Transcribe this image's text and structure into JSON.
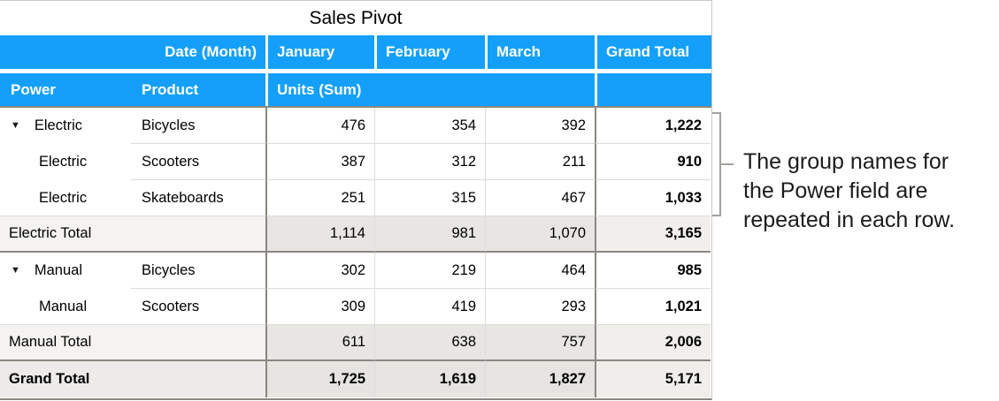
{
  "title": "Sales Pivot",
  "colors": {
    "header_blue": "#14a0fa"
  },
  "icons": {
    "disclosure_triangle": "▼"
  },
  "header": {
    "date_label": "Date (Month)",
    "months": [
      "January",
      "February",
      "March"
    ],
    "grand_total": "Grand Total",
    "power": "Power",
    "product": "Product",
    "units": "Units (Sum)"
  },
  "rows": [
    {
      "power": "Electric",
      "product": "Bicycles",
      "jan": "476",
      "feb": "354",
      "mar": "392",
      "total": "1,222"
    },
    {
      "power": "Electric",
      "product": "Scooters",
      "jan": "387",
      "feb": "312",
      "mar": "211",
      "total": "910"
    },
    {
      "power": "Electric",
      "product": "Skateboards",
      "jan": "251",
      "feb": "315",
      "mar": "467",
      "total": "1,033"
    },
    {
      "label": "Electric Total",
      "jan": "1,114",
      "feb": "981",
      "mar": "1,070",
      "total": "3,165"
    },
    {
      "power": "Manual",
      "product": "Bicycles",
      "jan": "302",
      "feb": "219",
      "mar": "464",
      "total": "985"
    },
    {
      "power": "Manual",
      "product": "Scooters",
      "jan": "309",
      "feb": "419",
      "mar": "293",
      "total": "1,021"
    },
    {
      "label": "Manual Total",
      "jan": "611",
      "feb": "638",
      "mar": "757",
      "total": "2,006"
    },
    {
      "label": "Grand Total",
      "jan": "1,725",
      "feb": "1,619",
      "mar": "1,827",
      "total": "5,171"
    }
  ],
  "annotation": {
    "line1": "The group names for",
    "line2": "the Power field are",
    "line3": "repeated in each row."
  }
}
